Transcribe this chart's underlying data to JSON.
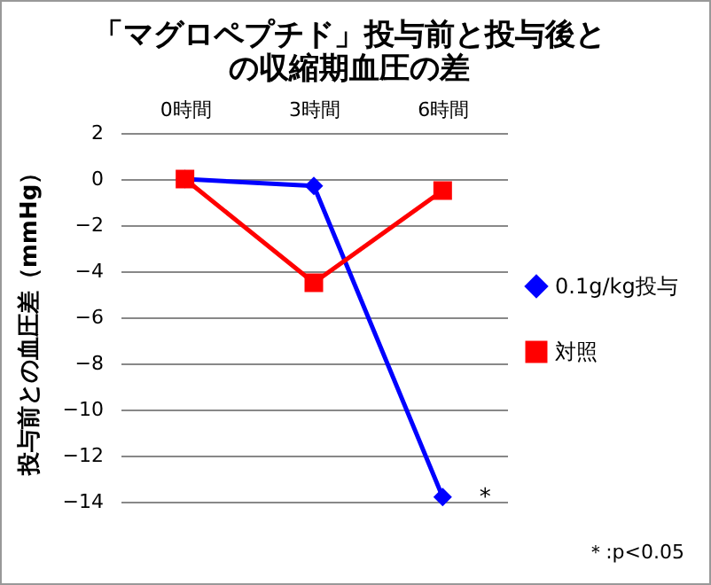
{
  "chart_data": {
    "type": "line",
    "title": "「マグロペプチド」投与前と投与後との収縮期血圧の差",
    "ylabel": "投与前との血圧差（mmHg）",
    "categories": [
      "0時間",
      "3時間",
      "6時間"
    ],
    "series": [
      {
        "name": "0.1g/kg投与",
        "color": "#0000ff",
        "marker": "diamond",
        "values": [
          0,
          -0.3,
          -13.8
        ]
      },
      {
        "name": "対照",
        "color": "#ff0000",
        "marker": "square",
        "values": [
          0,
          -4.5,
          -0.5
        ]
      }
    ],
    "ylim": [
      -14,
      2
    ],
    "yticks": [
      -14,
      -12,
      -10,
      -8,
      -6,
      -4,
      -2,
      0,
      2
    ],
    "grid": "y",
    "legend": "right",
    "annotations": [
      {
        "text": "*",
        "x": "6時間",
        "y": -13.8
      },
      "＊:p<0.05"
    ]
  }
}
